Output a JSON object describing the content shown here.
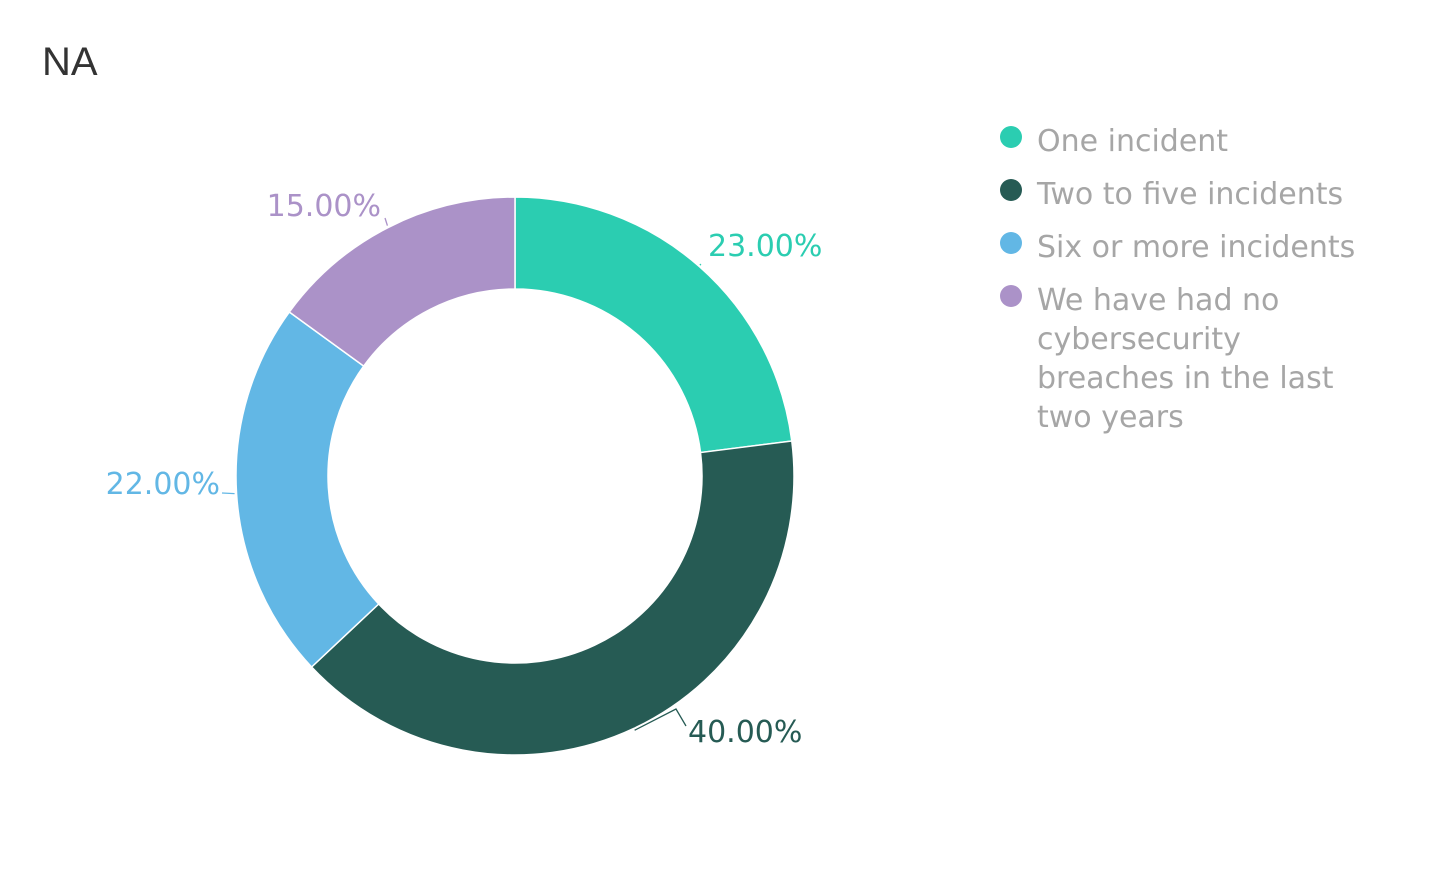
{
  "chart_data": {
    "type": "pie",
    "title": "NA",
    "style": "donut",
    "categories": [
      "One incident",
      "Two to five incidents",
      "Six or more incidents",
      "We have had no cybersecurity breaches in the last two years"
    ],
    "values": [
      23,
      40,
      22,
      15
    ],
    "value_labels": [
      "23.00%",
      "40.00%",
      "22.00%",
      "15.00%"
    ],
    "colors": [
      "#2bcdb1",
      "#265b54",
      "#62b7e5",
      "#ab92c8"
    ],
    "legend_position": "right",
    "slice_order": "clockwise from top"
  }
}
